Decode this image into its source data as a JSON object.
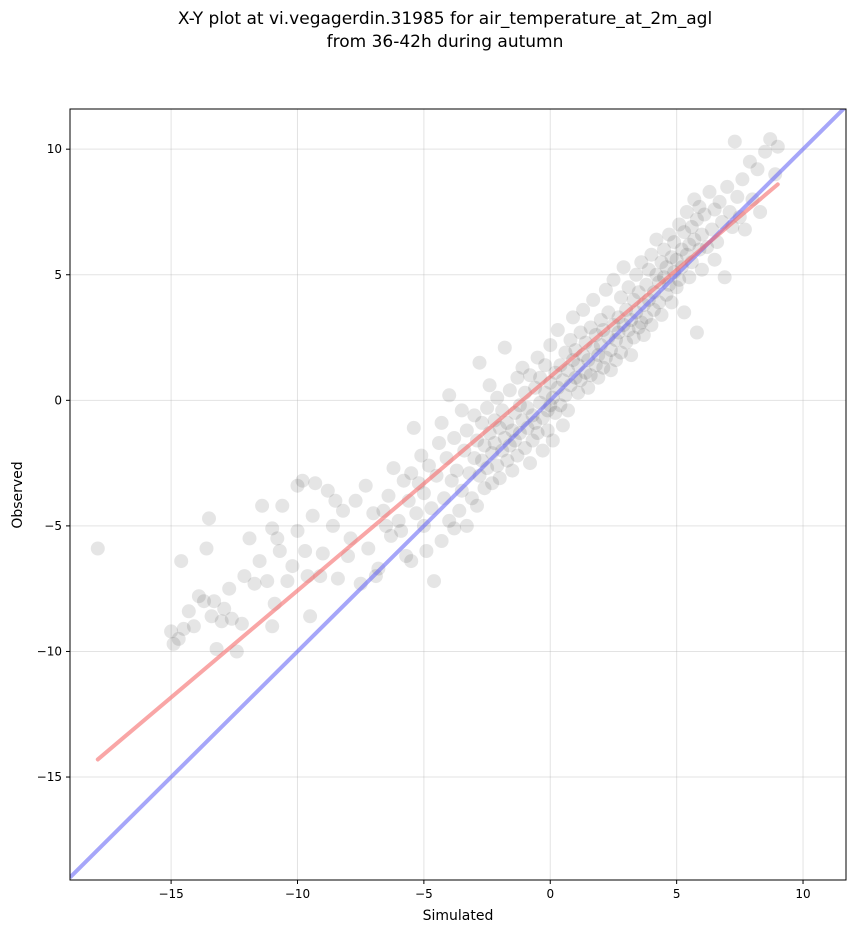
{
  "chart_data": {
    "type": "scatter",
    "title_lines": [
      "X-Y plot at vi.vegagerdin.31985 for air_temperature_at_2m_agl",
      "from 36-42h during autumn"
    ],
    "xlabel": "Simulated",
    "ylabel": "Observed",
    "xlim": [
      -19,
      11.7
    ],
    "ylim": [
      -19.1,
      11.6
    ],
    "xticks": [
      -15,
      -10,
      -5,
      0,
      5,
      10
    ],
    "yticks": [
      -15,
      -10,
      -5,
      0,
      5,
      10
    ],
    "grid": true,
    "colors": {
      "points": "#000000",
      "fit_line": "#f56b6b",
      "identity_line": "#6b6bf5"
    },
    "fit_line": {
      "x": [
        -17.9,
        9.0
      ],
      "y": [
        -14.3,
        8.6
      ]
    },
    "identity_line": {
      "x": [
        -19,
        11.7
      ],
      "y": [
        -19,
        11.7
      ]
    },
    "series": [
      {
        "points": [
          [
            -17.9,
            -5.9
          ],
          [
            -15.0,
            -9.2
          ],
          [
            -14.9,
            -9.7
          ],
          [
            -14.7,
            -9.5
          ],
          [
            -14.6,
            -6.4
          ],
          [
            -14.5,
            -9.1
          ],
          [
            -14.3,
            -8.4
          ],
          [
            -14.1,
            -9.0
          ],
          [
            -13.9,
            -7.8
          ],
          [
            -13.7,
            -8.0
          ],
          [
            -13.6,
            -5.9
          ],
          [
            -13.5,
            -4.7
          ],
          [
            -13.4,
            -8.6
          ],
          [
            -13.3,
            -8.0
          ],
          [
            -13.2,
            -9.9
          ],
          [
            -13.0,
            -8.8
          ],
          [
            -12.9,
            -8.3
          ],
          [
            -12.7,
            -7.5
          ],
          [
            -12.6,
            -8.7
          ],
          [
            -12.4,
            -10.0
          ],
          [
            -12.2,
            -8.9
          ],
          [
            -12.1,
            -7.0
          ],
          [
            -11.9,
            -5.5
          ],
          [
            -11.7,
            -7.3
          ],
          [
            -11.5,
            -6.4
          ],
          [
            -11.4,
            -4.2
          ],
          [
            -11.2,
            -7.2
          ],
          [
            -11.0,
            -9.0
          ],
          [
            -11.0,
            -5.1
          ],
          [
            -10.9,
            -8.1
          ],
          [
            -10.8,
            -5.5
          ],
          [
            -10.7,
            -6.0
          ],
          [
            -10.6,
            -4.2
          ],
          [
            -10.4,
            -7.2
          ],
          [
            -10.2,
            -6.6
          ],
          [
            -10.0,
            -3.4
          ],
          [
            -10.0,
            -5.2
          ],
          [
            -9.8,
            -3.2
          ],
          [
            -9.7,
            -6.0
          ],
          [
            -9.6,
            -7.0
          ],
          [
            -9.5,
            -8.6
          ],
          [
            -9.4,
            -4.6
          ],
          [
            -9.3,
            -3.3
          ],
          [
            -9.1,
            -7.0
          ],
          [
            -9.0,
            -6.1
          ],
          [
            -8.8,
            -3.6
          ],
          [
            -8.6,
            -5.0
          ],
          [
            -8.5,
            -4.0
          ],
          [
            -8.4,
            -7.1
          ],
          [
            -8.2,
            -4.4
          ],
          [
            -8.0,
            -6.2
          ],
          [
            -7.9,
            -5.5
          ],
          [
            -7.7,
            -4.0
          ],
          [
            -7.5,
            -7.3
          ],
          [
            -7.3,
            -3.4
          ],
          [
            -7.2,
            -5.9
          ],
          [
            -7.0,
            -4.5
          ],
          [
            -6.9,
            -7.0
          ],
          [
            -6.8,
            -6.7
          ],
          [
            -6.6,
            -4.4
          ],
          [
            -6.5,
            -5.0
          ],
          [
            -6.4,
            -3.8
          ],
          [
            -6.3,
            -5.4
          ],
          [
            -6.2,
            -2.7
          ],
          [
            -6.0,
            -4.8
          ],
          [
            -5.9,
            -5.2
          ],
          [
            -5.8,
            -3.2
          ],
          [
            -5.7,
            -6.2
          ],
          [
            -5.6,
            -4.0
          ],
          [
            -5.5,
            -2.9
          ],
          [
            -5.5,
            -6.4
          ],
          [
            -5.4,
            -1.1
          ],
          [
            -5.3,
            -4.5
          ],
          [
            -5.2,
            -3.3
          ],
          [
            -5.1,
            -2.2
          ],
          [
            -5.0,
            -5.0
          ],
          [
            -5.0,
            -3.7
          ],
          [
            -4.9,
            -6.0
          ],
          [
            -4.8,
            -2.6
          ],
          [
            -4.7,
            -4.3
          ],
          [
            -4.6,
            -7.2
          ],
          [
            -4.5,
            -3.0
          ],
          [
            -4.4,
            -1.7
          ],
          [
            -4.3,
            -5.6
          ],
          [
            -4.3,
            -0.9
          ],
          [
            -4.2,
            -3.9
          ],
          [
            -4.1,
            -2.3
          ],
          [
            -4.0,
            -4.8
          ],
          [
            -4.0,
            0.2
          ],
          [
            -3.9,
            -3.2
          ],
          [
            -3.8,
            -5.1
          ],
          [
            -3.8,
            -1.5
          ],
          [
            -3.7,
            -2.8
          ],
          [
            -3.6,
            -4.4
          ],
          [
            -3.5,
            -0.4
          ],
          [
            -3.5,
            -3.6
          ],
          [
            -3.4,
            -2.0
          ],
          [
            -3.3,
            -5.0
          ],
          [
            -3.3,
            -1.2
          ],
          [
            -3.2,
            -2.9
          ],
          [
            -3.1,
            -3.9
          ],
          [
            -3.0,
            -0.6
          ],
          [
            -3.0,
            -2.3
          ],
          [
            -2.9,
            -1.6
          ],
          [
            -2.9,
            -4.2
          ],
          [
            -2.8,
            1.5
          ],
          [
            -2.8,
            -3.0
          ],
          [
            -2.7,
            -0.9
          ],
          [
            -2.7,
            -2.4
          ],
          [
            -2.6,
            -1.8
          ],
          [
            -2.6,
            -3.5
          ],
          [
            -2.5,
            -0.3
          ],
          [
            -2.5,
            -2.7
          ],
          [
            -2.4,
            -1.3
          ],
          [
            -2.4,
            0.6
          ],
          [
            -2.3,
            -2.1
          ],
          [
            -2.3,
            -3.3
          ],
          [
            -2.2,
            -0.8
          ],
          [
            -2.2,
            -1.7
          ],
          [
            -2.1,
            -2.6
          ],
          [
            -2.1,
            0.1
          ],
          [
            -2.0,
            -1.1
          ],
          [
            -2.0,
            -3.1
          ],
          [
            -1.9,
            -2.0
          ],
          [
            -1.9,
            -0.4
          ],
          [
            -1.8,
            -1.5
          ],
          [
            -1.8,
            2.1
          ],
          [
            -1.7,
            -2.4
          ],
          [
            -1.7,
            -0.9
          ],
          [
            -1.6,
            -1.8
          ],
          [
            -1.6,
            0.4
          ],
          [
            -1.5,
            -1.2
          ],
          [
            -1.5,
            -2.8
          ],
          [
            -1.4,
            -0.5
          ],
          [
            -1.4,
            -1.6
          ],
          [
            -1.3,
            0.9
          ],
          [
            -1.3,
            -2.2
          ],
          [
            -1.2,
            -0.2
          ],
          [
            -1.2,
            -1.3
          ],
          [
            -1.1,
            1.3
          ],
          [
            -1.1,
            -0.8
          ],
          [
            -1.0,
            -1.9
          ],
          [
            -1.0,
            0.3
          ],
          [
            -0.9,
            -1.1
          ],
          [
            -0.9,
            -0.3
          ],
          [
            -0.8,
            -2.5
          ],
          [
            -0.8,
            1.0
          ],
          [
            -0.7,
            -0.6
          ],
          [
            -0.7,
            -1.6
          ],
          [
            -0.6,
            0.5
          ],
          [
            -0.6,
            -0.9
          ],
          [
            -0.5,
            1.7
          ],
          [
            -0.5,
            -1.3
          ],
          [
            -0.4,
            -0.1
          ],
          [
            -0.4,
            0.9
          ],
          [
            -0.3,
            -0.7
          ],
          [
            -0.3,
            -2.0
          ],
          [
            -0.2,
            0.3
          ],
          [
            -0.2,
            1.4
          ],
          [
            -0.1,
            -0.4
          ],
          [
            -0.1,
            -1.2
          ],
          [
            0.0,
            0.7
          ],
          [
            0.0,
            -0.2
          ],
          [
            0.0,
            2.2
          ],
          [
            0.1,
            0.1
          ],
          [
            0.1,
            -1.6
          ],
          [
            0.2,
            1.1
          ],
          [
            0.2,
            -0.5
          ],
          [
            0.3,
            0.5
          ],
          [
            0.3,
            2.8
          ],
          [
            0.4,
            -0.2
          ],
          [
            0.4,
            1.4
          ],
          [
            0.5,
            0.8
          ],
          [
            0.5,
            -1.0
          ],
          [
            0.6,
            1.9
          ],
          [
            0.6,
            0.2
          ],
          [
            0.7,
            1.2
          ],
          [
            0.7,
            -0.4
          ],
          [
            0.8,
            2.4
          ],
          [
            0.8,
            0.6
          ],
          [
            0.9,
            1.6
          ],
          [
            0.9,
            3.3
          ],
          [
            1.0,
            0.9
          ],
          [
            1.0,
            2.0
          ],
          [
            1.1,
            0.3
          ],
          [
            1.1,
            1.4
          ],
          [
            1.2,
            2.7
          ],
          [
            1.2,
            0.8
          ],
          [
            1.3,
            1.8
          ],
          [
            1.3,
            3.6
          ],
          [
            1.4,
            1.1
          ],
          [
            1.4,
            2.3
          ],
          [
            1.5,
            0.5
          ],
          [
            1.5,
            1.6
          ],
          [
            1.6,
            2.9
          ],
          [
            1.6,
            1.0
          ],
          [
            1.7,
            2.1
          ],
          [
            1.7,
            4.0
          ],
          [
            1.8,
            1.4
          ],
          [
            1.8,
            2.6
          ],
          [
            1.9,
            0.9
          ],
          [
            1.9,
            1.8
          ],
          [
            2.0,
            3.2
          ],
          [
            2.0,
            2.2
          ],
          [
            2.1,
            1.3
          ],
          [
            2.1,
            2.8
          ],
          [
            2.2,
            4.4
          ],
          [
            2.2,
            1.7
          ],
          [
            2.3,
            2.5
          ],
          [
            2.3,
            3.5
          ],
          [
            2.4,
            1.2
          ],
          [
            2.4,
            2.0
          ],
          [
            2.5,
            3.0
          ],
          [
            2.5,
            4.8
          ],
          [
            2.6,
            2.4
          ],
          [
            2.6,
            1.6
          ],
          [
            2.7,
            3.3
          ],
          [
            2.7,
            2.7
          ],
          [
            2.8,
            4.1
          ],
          [
            2.8,
            1.9
          ],
          [
            2.9,
            3.0
          ],
          [
            2.9,
            5.3
          ],
          [
            3.0,
            2.3
          ],
          [
            3.0,
            3.6
          ],
          [
            3.1,
            2.8
          ],
          [
            3.1,
            4.5
          ],
          [
            3.2,
            1.8
          ],
          [
            3.2,
            3.2
          ],
          [
            3.3,
            4.0
          ],
          [
            3.3,
            2.5
          ],
          [
            3.4,
            5.0
          ],
          [
            3.4,
            3.5
          ],
          [
            3.5,
            2.9
          ],
          [
            3.5,
            4.3
          ],
          [
            3.6,
            3.1
          ],
          [
            3.6,
            5.5
          ],
          [
            3.7,
            3.8
          ],
          [
            3.7,
            2.6
          ],
          [
            3.8,
            4.6
          ],
          [
            3.8,
            3.3
          ],
          [
            3.9,
            5.2
          ],
          [
            3.9,
            4.0
          ],
          [
            4.0,
            3.0
          ],
          [
            4.0,
            5.8
          ],
          [
            4.1,
            4.3
          ],
          [
            4.1,
            3.6
          ],
          [
            4.2,
            5.0
          ],
          [
            4.2,
            6.4
          ],
          [
            4.3,
            3.9
          ],
          [
            4.3,
            4.7
          ],
          [
            4.4,
            5.5
          ],
          [
            4.4,
            3.4
          ],
          [
            4.5,
            4.9
          ],
          [
            4.5,
            6.0
          ],
          [
            4.6,
            4.2
          ],
          [
            4.6,
            5.3
          ],
          [
            4.7,
            6.6
          ],
          [
            4.7,
            4.6
          ],
          [
            4.8,
            5.7
          ],
          [
            4.8,
            3.9
          ],
          [
            4.9,
            5.1
          ],
          [
            4.9,
            6.3
          ],
          [
            5.0,
            4.5
          ],
          [
            5.0,
            5.6
          ],
          [
            5.1,
            7.0
          ],
          [
            5.1,
            4.8
          ],
          [
            5.2,
            6.0
          ],
          [
            5.2,
            5.3
          ],
          [
            5.3,
            6.7
          ],
          [
            5.3,
            3.5
          ],
          [
            5.4,
            5.8
          ],
          [
            5.4,
            7.5
          ],
          [
            5.5,
            6.2
          ],
          [
            5.5,
            4.9
          ],
          [
            5.6,
            6.9
          ],
          [
            5.6,
            5.5
          ],
          [
            5.7,
            8.0
          ],
          [
            5.7,
            6.4
          ],
          [
            5.8,
            7.2
          ],
          [
            5.8,
            2.7
          ],
          [
            5.9,
            6.0
          ],
          [
            5.9,
            7.7
          ],
          [
            6.0,
            6.6
          ],
          [
            6.0,
            5.2
          ],
          [
            6.1,
            7.4
          ],
          [
            6.2,
            6.1
          ],
          [
            6.3,
            8.3
          ],
          [
            6.4,
            6.8
          ],
          [
            6.5,
            5.6
          ],
          [
            6.5,
            7.6
          ],
          [
            6.6,
            6.3
          ],
          [
            6.7,
            7.9
          ],
          [
            6.8,
            7.1
          ],
          [
            6.9,
            4.9
          ],
          [
            7.0,
            8.5
          ],
          [
            7.1,
            7.5
          ],
          [
            7.2,
            6.9
          ],
          [
            7.3,
            10.3
          ],
          [
            7.4,
            8.1
          ],
          [
            7.5,
            7.3
          ],
          [
            7.6,
            8.8
          ],
          [
            7.7,
            6.8
          ],
          [
            7.9,
            9.5
          ],
          [
            8.0,
            8.0
          ],
          [
            8.2,
            9.2
          ],
          [
            8.3,
            7.5
          ],
          [
            8.5,
            9.9
          ],
          [
            8.7,
            10.4
          ],
          [
            8.9,
            9.0
          ],
          [
            9.0,
            10.1
          ]
        ]
      }
    ]
  }
}
